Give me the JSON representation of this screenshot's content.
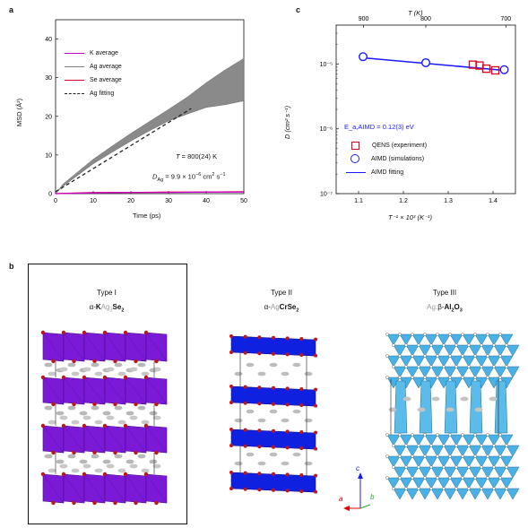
{
  "panels": {
    "a": "a",
    "b": "b",
    "c": "c"
  },
  "panel_a": {
    "xlabel": "Time (ps)",
    "ylabel": "MSD (Å²)",
    "xticks": [
      "0",
      "10",
      "20",
      "30",
      "40",
      "50"
    ],
    "yticks": [
      "0",
      "10",
      "20",
      "30",
      "40"
    ],
    "legend": [
      {
        "label": "K average",
        "color": "#cc00cc",
        "style": "solid"
      },
      {
        "label": "Ag average",
        "color": "#808080",
        "style": "solid"
      },
      {
        "label": "Se average",
        "color": "#e0002a",
        "style": "solid"
      },
      {
        "label": "Ag fitting",
        "color": "#222222",
        "style": "dashed"
      }
    ],
    "temperature": "T = 800(24) K",
    "diffusion": "D_Ag = 9.9 × 10⁻⁶ cm² s⁻¹",
    "diffusion_parts": {
      "pre": "D",
      "sub": "Ag",
      "mid": " = 9.9 × 10",
      "sup": "−6",
      "unit": " cm",
      "sup2": "2",
      "tail": " s",
      "sup3": "−1"
    },
    "temp_parts": {
      "T": "T",
      "rest": " = 800(24) K"
    }
  },
  "panel_c": {
    "top_axis_label": "T (K)",
    "top_ticks": [
      "900",
      "800",
      "700"
    ],
    "xlabel": "T⁻¹ × 10³ (K⁻¹)",
    "ylabel": "D (cm² s⁻¹)",
    "xticks": [
      "1.1",
      "1.2",
      "1.3",
      "1.4"
    ],
    "yticks": [
      "10⁻⁷",
      "10⁻⁶",
      "10⁻⁵"
    ],
    "activation": "E_a,AIMD = 0.12(3) eV",
    "legend": [
      {
        "label": "QENS (experiment)",
        "color": "#e0001b",
        "marker": "square"
      },
      {
        "label": "AIMD (simulations)",
        "color": "#1a1aff",
        "marker": "circle"
      },
      {
        "label": "AIMD fitting",
        "color": "#1a1aff",
        "marker": "line"
      }
    ]
  },
  "panel_b": {
    "types": [
      {
        "title": "Type I",
        "formula_prefix": "α-",
        "formula_bold1": "K",
        "formula_grey": "Ag",
        "formula_sub_grey": "3",
        "formula_bold2": "Se",
        "formula_sub2": "2",
        "color": "#7a1ad6"
      },
      {
        "title": "Type II",
        "formula_prefix": "α-",
        "formula_grey": "Ag",
        "formula_bold2": "CrSe",
        "formula_sub2": "2",
        "color": "#1020e0"
      },
      {
        "title": "Type III",
        "formula_grey": "Ag:",
        "formula_prefix": "β-",
        "formula_bold2": "Al",
        "formula_sub2": "2",
        "formula_bold3": "O",
        "formula_sub3": "3",
        "color": "#49b1e6"
      }
    ],
    "axes": {
      "a": "a",
      "b": "b",
      "c": "c"
    }
  },
  "chart_data": [
    {
      "type": "line",
      "title": "",
      "xlabel": "Time (ps)",
      "ylabel": "MSD (Å²)",
      "xlim": [
        0,
        50
      ],
      "ylim": [
        0,
        45
      ],
      "series": [
        {
          "name": "K average",
          "x": [
            0,
            10,
            20,
            30,
            40,
            50
          ],
          "y": [
            0,
            0.2,
            0.3,
            0.3,
            0.4,
            0.4
          ]
        },
        {
          "name": "Ag average",
          "x": [
            0,
            2,
            5,
            10,
            15,
            20,
            25,
            30,
            35,
            40,
            45,
            50
          ],
          "y": [
            0,
            2.2,
            4.5,
            8.3,
            11.5,
            14.6,
            17.5,
            20.3,
            22.8,
            25.5,
            27.5,
            29.5
          ],
          "spread": [
            0,
            0.3,
            0.4,
            0.6,
            0.8,
            1.0,
            1.2,
            1.5,
            2.2,
            3.2,
            4.5,
            5.5
          ]
        },
        {
          "name": "Se average",
          "x": [
            0,
            10,
            20,
            30,
            40,
            50
          ],
          "y": [
            0,
            0.3,
            0.3,
            0.4,
            0.4,
            0.5
          ]
        },
        {
          "name": "Ag fitting",
          "x": [
            0,
            36
          ],
          "y": [
            0.5,
            22
          ]
        }
      ]
    },
    {
      "type": "scatter",
      "title": "",
      "xlabel": "T⁻¹ × 10³ (K⁻¹)",
      "ylabel": "D (cm² s⁻¹)",
      "xlim": [
        1.05,
        1.45
      ],
      "ylim": [
        1e-07,
        4e-05
      ],
      "yscale": "log",
      "series": [
        {
          "name": "QENS (experiment)",
          "x": [
            1.355,
            1.37,
            1.385,
            1.405
          ],
          "y": [
            9.8e-06,
            9.5e-06,
            8.5e-06,
            8e-06
          ]
        },
        {
          "name": "AIMD (simulations)",
          "x": [
            1.11,
            1.25,
            1.425
          ],
          "y": [
            1.3e-05,
            1.05e-05,
            8.2e-06
          ]
        },
        {
          "name": "AIMD fitting",
          "x": [
            1.11,
            1.425
          ],
          "y": [
            1.25e-05,
            8e-06
          ]
        }
      ]
    }
  ]
}
